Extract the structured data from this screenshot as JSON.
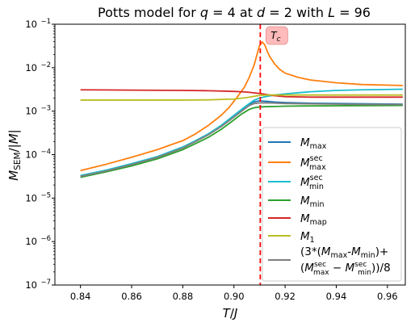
{
  "chart_data": {
    "type": "line",
    "title": "Potts model for q = 4 at d = 2 with L = 96",
    "title_parts": [
      "Potts model for ",
      "q",
      " = 4 at ",
      "d",
      " = 2 with ",
      "L",
      " = 96"
    ],
    "xlabel": "T/J",
    "ylabel": "M_SEM/|M|",
    "xlim": [
      0.83,
      0.967
    ],
    "ylim": [
      1e-07,
      0.1
    ],
    "yscale": "log",
    "grid": false,
    "legend_position": "right",
    "x_ticks": [
      0.84,
      0.86,
      0.88,
      0.9,
      0.92,
      0.94,
      0.96
    ],
    "x_tick_labels": [
      "0.84",
      "0.86",
      "0.88",
      "0.90",
      "0.92",
      "0.94",
      "0.96"
    ],
    "y_ticks": [
      -7,
      -6,
      -5,
      -4,
      -3,
      -2,
      -1
    ],
    "y_tick_labels": [
      {
        "base": "10",
        "exp": "−7"
      },
      {
        "base": "10",
        "exp": "−6"
      },
      {
        "base": "10",
        "exp": "−5"
      },
      {
        "base": "10",
        "exp": "−4"
      },
      {
        "base": "10",
        "exp": "−3"
      },
      {
        "base": "10",
        "exp": "−2"
      },
      {
        "base": "10",
        "exp": "−1"
      }
    ],
    "annotation": {
      "text": "T_c",
      "x": 0.9103
    },
    "vline": {
      "x": 0.9103,
      "color": "#ff0000",
      "style": "dashed"
    },
    "series": [
      {
        "name": "M_max",
        "color": "#1f77b4",
        "x": [
          0.84,
          0.85,
          0.86,
          0.87,
          0.88,
          0.885,
          0.89,
          0.895,
          0.9,
          0.903,
          0.906,
          0.908,
          0.91,
          0.913,
          0.916,
          0.92,
          0.93,
          0.94,
          0.95,
          0.966
        ],
        "y": [
          3.2e-05,
          4.3e-05,
          6e-05,
          8.8e-05,
          0.000145,
          0.000205,
          0.00029,
          0.00045,
          0.00075,
          0.00105,
          0.00145,
          0.00165,
          0.00172,
          0.00168,
          0.00162,
          0.00158,
          0.00152,
          0.0015,
          0.00148,
          0.00145
        ]
      },
      {
        "name": "M_max^sec",
        "color": "#ff7f0e",
        "x": [
          0.84,
          0.85,
          0.86,
          0.87,
          0.88,
          0.885,
          0.89,
          0.895,
          0.898,
          0.901,
          0.904,
          0.906,
          0.908,
          0.909,
          0.91,
          0.911,
          0.912,
          0.913,
          0.914,
          0.916,
          0.918,
          0.92,
          0.925,
          0.93,
          0.94,
          0.95,
          0.966
        ],
        "y": [
          4.3e-05,
          6e-05,
          8.7e-05,
          0.00013,
          0.00021,
          0.0003,
          0.00047,
          0.0008,
          0.0012,
          0.002,
          0.0035,
          0.006,
          0.012,
          0.02,
          0.032,
          0.039,
          0.034,
          0.024,
          0.018,
          0.012,
          0.009,
          0.0075,
          0.006,
          0.0052,
          0.0045,
          0.0041,
          0.0039
        ]
      },
      {
        "name": "M_min^sec",
        "color": "#17becf",
        "x": [
          0.84,
          0.85,
          0.86,
          0.87,
          0.88,
          0.885,
          0.89,
          0.895,
          0.9,
          0.903,
          0.906,
          0.908,
          0.91,
          0.913,
          0.916,
          0.92,
          0.93,
          0.94,
          0.95,
          0.966
        ],
        "y": [
          3.3e-05,
          4.4e-05,
          6.2e-05,
          9e-05,
          0.00015,
          0.00021,
          0.0003,
          0.00047,
          0.0008,
          0.0011,
          0.0015,
          0.0018,
          0.002,
          0.0022,
          0.00235,
          0.0025,
          0.0028,
          0.003,
          0.0031,
          0.0032
        ]
      },
      {
        "name": "M_min",
        "color": "#2ca02c",
        "x": [
          0.84,
          0.85,
          0.86,
          0.87,
          0.88,
          0.885,
          0.89,
          0.895,
          0.9,
          0.903,
          0.906,
          0.908,
          0.91,
          0.913,
          0.916,
          0.92,
          0.93,
          0.94,
          0.95,
          0.966
        ],
        "y": [
          3e-05,
          4e-05,
          5.5e-05,
          8e-05,
          0.00013,
          0.00018,
          0.00025,
          0.00038,
          0.00063,
          0.00086,
          0.0011,
          0.0012,
          0.00125,
          0.00127,
          0.00128,
          0.0013,
          0.00132,
          0.00133,
          0.00134,
          0.00135
        ]
      },
      {
        "name": "M_map",
        "color": "#d62728",
        "x": [
          0.84,
          0.86,
          0.88,
          0.89,
          0.9,
          0.905,
          0.91,
          0.915,
          0.92,
          0.93,
          0.94,
          0.95,
          0.966
        ],
        "y": [
          0.0031,
          0.00305,
          0.003,
          0.00295,
          0.00285,
          0.00275,
          0.00255,
          0.0023,
          0.00215,
          0.0021,
          0.0021,
          0.0021,
          0.0021
        ]
      },
      {
        "name": "M_1",
        "color": "#bcbd22",
        "x": [
          0.84,
          0.86,
          0.88,
          0.89,
          0.9,
          0.905,
          0.908,
          0.91,
          0.913,
          0.916,
          0.92,
          0.93,
          0.94,
          0.95,
          0.966
        ],
        "y": [
          0.0018,
          0.0018,
          0.0018,
          0.00182,
          0.0019,
          0.00205,
          0.0022,
          0.0023,
          0.00235,
          0.00235,
          0.00235,
          0.00235,
          0.00235,
          0.00235,
          0.00235
        ]
      },
      {
        "name": "(3*(M_max-M_min)+(M_max^sec-M_min^sec))/8",
        "color": "#7f7f7f",
        "x": [
          0.84,
          0.85,
          0.86,
          0.87,
          0.88,
          0.885,
          0.89,
          0.895,
          0.9,
          0.903,
          0.906,
          0.908,
          0.91,
          0.913,
          0.916,
          0.92,
          0.93,
          0.94,
          0.95,
          0.966
        ],
        "y": [
          3.15e-05,
          4.2e-05,
          5.9e-05,
          8.6e-05,
          0.000142,
          0.0002,
          0.000285,
          0.00044,
          0.00073,
          0.001,
          0.00135,
          0.0015,
          0.00155,
          0.00155,
          0.00153,
          0.0015,
          0.00147,
          0.00145,
          0.00143,
          0.00142
        ]
      }
    ]
  }
}
